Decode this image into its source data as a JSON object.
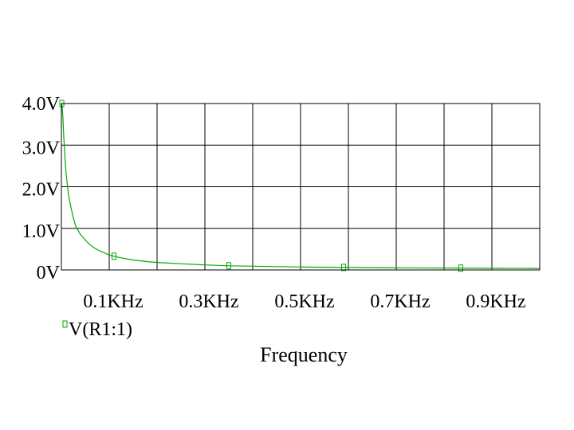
{
  "chart_data": {
    "type": "line",
    "title": "",
    "xlabel": "Frequency",
    "ylabel": "",
    "xlim": [
      0,
      1000
    ],
    "ylim": [
      0,
      4.0
    ],
    "grid": true,
    "legend_position": "bottom-left",
    "x_ticks": [
      {
        "value": 100,
        "label": "0.1KHz"
      },
      {
        "value": 300,
        "label": "0.3KHz"
      },
      {
        "value": 500,
        "label": "0.5KHz"
      },
      {
        "value": 700,
        "label": "0.7KHz"
      },
      {
        "value": 900,
        "label": "0.9KHz"
      }
    ],
    "x_gridlines": [
      100,
      200,
      300,
      400,
      500,
      600,
      700,
      800,
      900
    ],
    "y_ticks": [
      {
        "value": 0,
        "label": "0V"
      },
      {
        "value": 1.0,
        "label": "1.0V"
      },
      {
        "value": 2.0,
        "label": "2.0V"
      },
      {
        "value": 3.0,
        "label": "3.0V"
      },
      {
        "value": 4.0,
        "label": "4.0V"
      }
    ],
    "series": [
      {
        "name": "V(R1:1)",
        "color": "#00aa00",
        "x": [
          1,
          3,
          5,
          8,
          10,
          15,
          20,
          25,
          30,
          40,
          50,
          60,
          70,
          80,
          90,
          100,
          110,
          130,
          150,
          180,
          200,
          250,
          300,
          350,
          400,
          450,
          500,
          600,
          700,
          800,
          900,
          1000
        ],
        "y": [
          4.0,
          3.7,
          3.2,
          2.6,
          2.3,
          1.8,
          1.5,
          1.25,
          1.05,
          0.85,
          0.72,
          0.6,
          0.52,
          0.46,
          0.41,
          0.36,
          0.33,
          0.28,
          0.24,
          0.2,
          0.18,
          0.15,
          0.12,
          0.1,
          0.09,
          0.08,
          0.07,
          0.06,
          0.05,
          0.045,
          0.04,
          0.036
        ],
        "markers_x": [
          1,
          110,
          350,
          590,
          835
        ]
      }
    ]
  }
}
